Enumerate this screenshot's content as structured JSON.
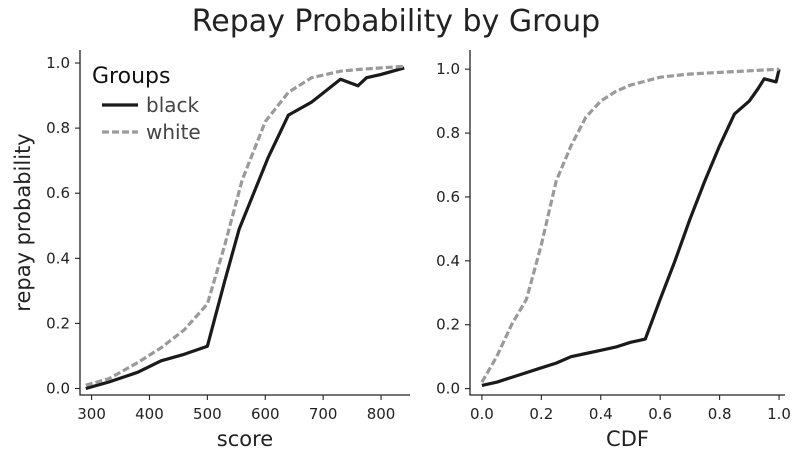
{
  "title": "Repay Probability by Group",
  "colors": {
    "black": "#1a1a1a",
    "white": "#9a9a9a"
  },
  "chart_data": [
    {
      "type": "line",
      "xlabel": "score",
      "ylabel": "repay probability",
      "xlim": [
        280,
        850
      ],
      "ylim": [
        -0.02,
        1.04
      ],
      "xticks": [
        300,
        400,
        500,
        600,
        700,
        800
      ],
      "yticks": [
        0.0,
        0.2,
        0.4,
        0.6,
        0.8,
        1.0
      ],
      "xtick_labels": [
        "300",
        "400",
        "500",
        "600",
        "700",
        "800"
      ],
      "ytick_labels": [
        "0.0",
        "0.2",
        "0.4",
        "0.6",
        "0.8",
        "1.0"
      ],
      "grid": false,
      "legend": {
        "title": "Groups",
        "placement": "top-left",
        "entries": [
          {
            "label": "black",
            "style": "solid"
          },
          {
            "label": "white",
            "style": "dashed"
          }
        ]
      },
      "series": [
        {
          "name": "black",
          "x": [
            290,
            330,
            380,
            420,
            460,
            500,
            530,
            555,
            580,
            605,
            640,
            680,
            730,
            760,
            775,
            800,
            840
          ],
          "y": [
            0.0,
            0.02,
            0.05,
            0.085,
            0.105,
            0.13,
            0.33,
            0.49,
            0.6,
            0.71,
            0.84,
            0.88,
            0.95,
            0.93,
            0.955,
            0.965,
            0.985
          ]
        },
        {
          "name": "white",
          "x": [
            290,
            330,
            380,
            420,
            460,
            500,
            530,
            560,
            600,
            640,
            680,
            730,
            760,
            800,
            840
          ],
          "y": [
            0.01,
            0.03,
            0.08,
            0.125,
            0.18,
            0.26,
            0.44,
            0.64,
            0.82,
            0.91,
            0.955,
            0.975,
            0.98,
            0.985,
            0.99
          ]
        }
      ]
    },
    {
      "type": "line",
      "xlabel": "CDF",
      "ylabel": "",
      "xlim": [
        -0.04,
        1.02
      ],
      "ylim": [
        -0.02,
        1.06
      ],
      "xticks": [
        0.0,
        0.2,
        0.4,
        0.6,
        0.8,
        1.0
      ],
      "yticks": [
        0.0,
        0.2,
        0.4,
        0.6,
        0.8,
        1.0
      ],
      "xtick_labels": [
        "0.0",
        "0.2",
        "0.4",
        "0.6",
        "0.8",
        "1.0"
      ],
      "ytick_labels": [
        "0.0",
        "0.2",
        "0.4",
        "0.6",
        "0.8",
        "1.0"
      ],
      "grid": false,
      "series": [
        {
          "name": "black",
          "x": [
            0.0,
            0.05,
            0.1,
            0.15,
            0.2,
            0.25,
            0.3,
            0.35,
            0.4,
            0.45,
            0.5,
            0.55,
            0.6,
            0.65,
            0.7,
            0.75,
            0.8,
            0.85,
            0.9,
            0.93,
            0.95,
            0.97,
            0.99,
            1.0
          ],
          "y": [
            0.01,
            0.02,
            0.035,
            0.05,
            0.065,
            0.08,
            0.1,
            0.11,
            0.12,
            0.13,
            0.145,
            0.155,
            0.28,
            0.4,
            0.53,
            0.65,
            0.76,
            0.86,
            0.9,
            0.94,
            0.97,
            0.965,
            0.96,
            1.0
          ]
        },
        {
          "name": "white",
          "x": [
            0.0,
            0.05,
            0.1,
            0.15,
            0.2,
            0.25,
            0.3,
            0.35,
            0.4,
            0.45,
            0.5,
            0.6,
            0.7,
            0.8,
            0.9,
            1.0
          ],
          "y": [
            0.02,
            0.1,
            0.2,
            0.28,
            0.45,
            0.65,
            0.76,
            0.85,
            0.9,
            0.93,
            0.95,
            0.975,
            0.985,
            0.99,
            0.995,
            1.0
          ]
        }
      ]
    }
  ]
}
